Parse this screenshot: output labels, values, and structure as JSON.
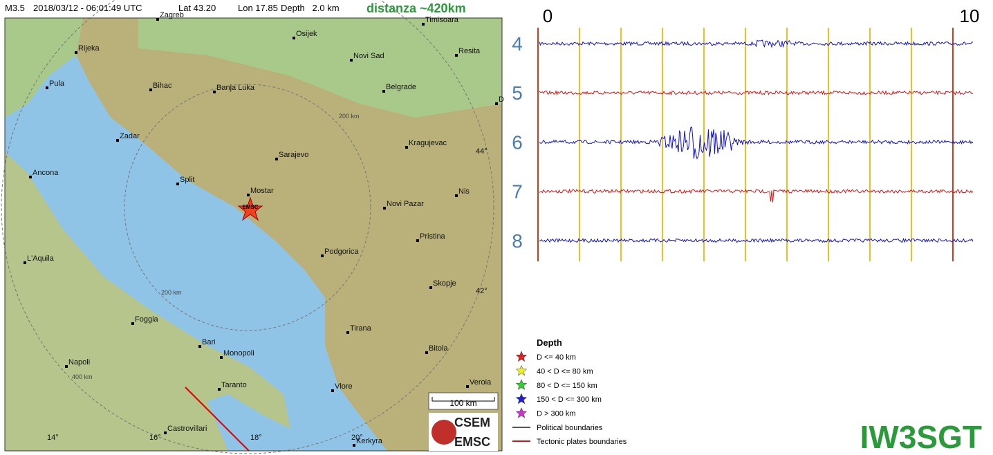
{
  "header": {
    "magnitude": "M3.5",
    "datetime": "2018/03/12 - 06:01:49 UTC",
    "lat": "Lat 43.20",
    "lon": "Lon 17.85",
    "depth": "Depth   2.0 km",
    "distance": "distanza ~420km"
  },
  "map": {
    "cities": [
      "Zagreb",
      "Osijek",
      "Timisoara",
      "Rijeka",
      "Novi Sad",
      "Resita",
      "Pula",
      "Bihac",
      "Banja Luka",
      "Belgrade",
      "D",
      "Zadar",
      "Kragujevac",
      "Sarajevo",
      "Ancona",
      "Split",
      "Mostar",
      "Nis",
      "Novi Pazar",
      "Pristina",
      "Podgorica",
      "L'Aquila",
      "Skopje",
      "Foggia",
      "Tirana",
      "Bari",
      "Monopoli",
      "Bitola",
      "Napoli",
      "Taranto",
      "Vlore",
      "Veroia",
      "Castrovillari",
      "Kerkyra"
    ],
    "epicenter_label": "EMSC",
    "grid_labels": [
      "44°",
      "42°",
      "14°",
      "16°",
      "18°",
      "20°"
    ],
    "ring_labels": [
      "200 km",
      "200 km",
      "400 km"
    ],
    "scale": "100 km",
    "logo": [
      "CSEM",
      "EMSC"
    ]
  },
  "seismogram": {
    "axis_labels": [
      0,
      10
    ],
    "rows": [
      4,
      5,
      6,
      7,
      8
    ]
  },
  "legend": {
    "title": "Depth",
    "items": [
      "D <= 40 km",
      "40 < D <= 80 km",
      "80 < D <= 150 km",
      "150 < D <= 300 km",
      "D > 300 km"
    ],
    "lines": [
      "Political boundaries",
      "Tectonic plates boundaries"
    ]
  },
  "station": "IW3SGT"
}
